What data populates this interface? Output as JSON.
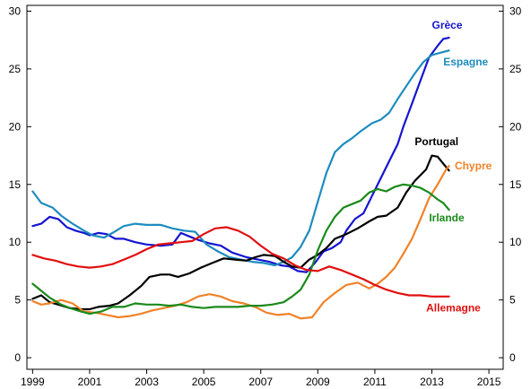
{
  "chart_data": {
    "type": "line",
    "grid": false,
    "xlim": [
      1998.8,
      2015.5
    ],
    "ylim": [
      -1,
      30.5
    ],
    "x_ticks": [
      "1999",
      "2001",
      "2003",
      "2005",
      "2007",
      "2009",
      "2011",
      "2013",
      "2015"
    ],
    "y_ticks_left": [
      "0",
      "5",
      "10",
      "15",
      "20",
      "25",
      "30"
    ],
    "y_ticks_right": [
      "0",
      "5",
      "10",
      "15",
      "20",
      "25",
      "30"
    ],
    "series": [
      {
        "name": "Grèce",
        "color": "#1414d2",
        "label_at": [
          2013.0,
          28.5
        ],
        "points": [
          [
            1999.0,
            11.4
          ],
          [
            1999.3,
            11.6
          ],
          [
            1999.6,
            12.2
          ],
          [
            1999.9,
            12.0
          ],
          [
            2000.2,
            11.3
          ],
          [
            2000.5,
            11.0
          ],
          [
            2000.8,
            10.8
          ],
          [
            2001.0,
            10.6
          ],
          [
            2001.3,
            10.8
          ],
          [
            2001.6,
            10.7
          ],
          [
            2001.9,
            10.3
          ],
          [
            2002.2,
            10.3
          ],
          [
            2002.6,
            10.0
          ],
          [
            2003.0,
            9.8
          ],
          [
            2003.5,
            9.7
          ],
          [
            2003.9,
            9.8
          ],
          [
            2004.2,
            10.8
          ],
          [
            2004.5,
            10.5
          ],
          [
            2004.8,
            10.2
          ],
          [
            2005.2,
            9.9
          ],
          [
            2005.6,
            9.7
          ],
          [
            2006.0,
            9.1
          ],
          [
            2006.5,
            8.7
          ],
          [
            2006.9,
            8.5
          ],
          [
            2007.3,
            8.3
          ],
          [
            2007.7,
            8.0
          ],
          [
            2008.0,
            7.9
          ],
          [
            2008.3,
            7.5
          ],
          [
            2008.6,
            7.4
          ],
          [
            2008.9,
            8.2
          ],
          [
            2009.2,
            9.2
          ],
          [
            2009.5,
            9.5
          ],
          [
            2009.8,
            10.0
          ],
          [
            2010.0,
            11.0
          ],
          [
            2010.3,
            12.0
          ],
          [
            2010.6,
            12.5
          ],
          [
            2010.9,
            14.0
          ],
          [
            2011.2,
            15.5
          ],
          [
            2011.5,
            17.0
          ],
          [
            2011.8,
            18.5
          ],
          [
            2012.0,
            20.0
          ],
          [
            2012.3,
            22.0
          ],
          [
            2012.6,
            24.0
          ],
          [
            2012.9,
            26.0
          ],
          [
            2013.2,
            27.0
          ],
          [
            2013.4,
            27.6
          ],
          [
            2013.6,
            27.7
          ]
        ]
      },
      {
        "name": "Espagne",
        "color": "#1e8cbe",
        "label_at": [
          2013.4,
          25.3
        ],
        "points": [
          [
            1999.0,
            14.4
          ],
          [
            1999.3,
            13.4
          ],
          [
            1999.7,
            13.0
          ],
          [
            2000.0,
            12.3
          ],
          [
            2000.4,
            11.6
          ],
          [
            2000.8,
            11.0
          ],
          [
            2001.1,
            10.6
          ],
          [
            2001.5,
            10.4
          ],
          [
            2001.8,
            10.8
          ],
          [
            2002.2,
            11.4
          ],
          [
            2002.6,
            11.6
          ],
          [
            2003.0,
            11.5
          ],
          [
            2003.5,
            11.5
          ],
          [
            2003.9,
            11.2
          ],
          [
            2004.3,
            11.0
          ],
          [
            2004.7,
            10.9
          ],
          [
            2005.1,
            9.8
          ],
          [
            2005.5,
            9.2
          ],
          [
            2005.9,
            8.7
          ],
          [
            2006.3,
            8.5
          ],
          [
            2006.7,
            8.3
          ],
          [
            2007.1,
            8.2
          ],
          [
            2007.5,
            8.0
          ],
          [
            2007.8,
            8.3
          ],
          [
            2008.1,
            8.7
          ],
          [
            2008.4,
            9.6
          ],
          [
            2008.7,
            11.0
          ],
          [
            2009.0,
            13.5
          ],
          [
            2009.3,
            16.0
          ],
          [
            2009.6,
            17.8
          ],
          [
            2009.9,
            18.5
          ],
          [
            2010.2,
            19.0
          ],
          [
            2010.5,
            19.6
          ],
          [
            2010.9,
            20.3
          ],
          [
            2011.2,
            20.6
          ],
          [
            2011.5,
            21.2
          ],
          [
            2011.8,
            22.4
          ],
          [
            2012.1,
            23.5
          ],
          [
            2012.4,
            24.6
          ],
          [
            2012.7,
            25.6
          ],
          [
            2013.0,
            26.2
          ],
          [
            2013.3,
            26.4
          ],
          [
            2013.6,
            26.6
          ]
        ]
      },
      {
        "name": "Portugal",
        "color": "#000000",
        "label_at": [
          2012.4,
          18.4
        ],
        "points": [
          [
            1999.0,
            5.1
          ],
          [
            1999.3,
            5.4
          ],
          [
            1999.6,
            4.8
          ],
          [
            1999.9,
            4.6
          ],
          [
            2000.3,
            4.3
          ],
          [
            2000.7,
            4.2
          ],
          [
            2001.0,
            4.2
          ],
          [
            2001.3,
            4.4
          ],
          [
            2001.7,
            4.5
          ],
          [
            2002.0,
            4.7
          ],
          [
            2002.4,
            5.4
          ],
          [
            2002.8,
            6.2
          ],
          [
            2003.1,
            7.0
          ],
          [
            2003.5,
            7.2
          ],
          [
            2003.8,
            7.2
          ],
          [
            2004.1,
            7.0
          ],
          [
            2004.5,
            7.3
          ],
          [
            2004.9,
            7.8
          ],
          [
            2005.3,
            8.2
          ],
          [
            2005.7,
            8.6
          ],
          [
            2006.1,
            8.5
          ],
          [
            2006.5,
            8.4
          ],
          [
            2006.8,
            8.7
          ],
          [
            2007.1,
            8.9
          ],
          [
            2007.5,
            8.8
          ],
          [
            2007.8,
            8.3
          ],
          [
            2008.1,
            7.9
          ],
          [
            2008.4,
            7.8
          ],
          [
            2008.7,
            8.5
          ],
          [
            2009.0,
            8.9
          ],
          [
            2009.3,
            9.5
          ],
          [
            2009.6,
            10.3
          ],
          [
            2010.0,
            10.7
          ],
          [
            2010.4,
            11.2
          ],
          [
            2010.8,
            11.8
          ],
          [
            2011.1,
            12.2
          ],
          [
            2011.4,
            12.3
          ],
          [
            2011.8,
            13.0
          ],
          [
            2012.1,
            14.3
          ],
          [
            2012.4,
            15.3
          ],
          [
            2012.8,
            16.3
          ],
          [
            2013.0,
            17.5
          ],
          [
            2013.2,
            17.4
          ],
          [
            2013.4,
            16.8
          ],
          [
            2013.6,
            16.2
          ]
        ]
      },
      {
        "name": "Chypre",
        "color": "#f08228",
        "label_at": [
          2013.8,
          16.3
        ],
        "points": [
          [
            1999.0,
            4.9
          ],
          [
            1999.3,
            4.6
          ],
          [
            1999.6,
            4.7
          ],
          [
            2000.0,
            5.0
          ],
          [
            2000.4,
            4.7
          ],
          [
            2000.8,
            4.0
          ],
          [
            2001.2,
            3.9
          ],
          [
            2001.6,
            3.7
          ],
          [
            2002.0,
            3.5
          ],
          [
            2002.4,
            3.6
          ],
          [
            2002.8,
            3.8
          ],
          [
            2003.2,
            4.1
          ],
          [
            2003.6,
            4.3
          ],
          [
            2004.0,
            4.5
          ],
          [
            2004.4,
            4.8
          ],
          [
            2004.8,
            5.3
          ],
          [
            2005.2,
            5.5
          ],
          [
            2005.6,
            5.3
          ],
          [
            2006.0,
            4.9
          ],
          [
            2006.4,
            4.7
          ],
          [
            2006.8,
            4.4
          ],
          [
            2007.2,
            3.9
          ],
          [
            2007.6,
            3.7
          ],
          [
            2008.0,
            3.8
          ],
          [
            2008.4,
            3.4
          ],
          [
            2008.8,
            3.5
          ],
          [
            2009.2,
            4.8
          ],
          [
            2009.6,
            5.6
          ],
          [
            2010.0,
            6.3
          ],
          [
            2010.4,
            6.5
          ],
          [
            2010.8,
            6.0
          ],
          [
            2011.1,
            6.4
          ],
          [
            2011.4,
            7.0
          ],
          [
            2011.7,
            7.8
          ],
          [
            2012.0,
            9.0
          ],
          [
            2012.3,
            10.3
          ],
          [
            2012.6,
            12.0
          ],
          [
            2012.9,
            13.8
          ],
          [
            2013.2,
            15.0
          ],
          [
            2013.5,
            16.3
          ],
          [
            2013.6,
            16.6
          ]
        ]
      },
      {
        "name": "Irlande",
        "color": "#1a8a1a",
        "label_at": [
          2012.9,
          11.8
        ],
        "points": [
          [
            1999.0,
            6.4
          ],
          [
            1999.3,
            5.8
          ],
          [
            1999.6,
            5.2
          ],
          [
            2000.0,
            4.6
          ],
          [
            2000.3,
            4.3
          ],
          [
            2000.7,
            4.0
          ],
          [
            2001.0,
            3.8
          ],
          [
            2001.4,
            4.0
          ],
          [
            2001.8,
            4.4
          ],
          [
            2002.2,
            4.4
          ],
          [
            2002.6,
            4.7
          ],
          [
            2003.0,
            4.6
          ],
          [
            2003.4,
            4.6
          ],
          [
            2003.8,
            4.5
          ],
          [
            2004.2,
            4.6
          ],
          [
            2004.6,
            4.4
          ],
          [
            2005.0,
            4.3
          ],
          [
            2005.4,
            4.4
          ],
          [
            2005.8,
            4.4
          ],
          [
            2006.2,
            4.4
          ],
          [
            2006.6,
            4.5
          ],
          [
            2007.0,
            4.5
          ],
          [
            2007.4,
            4.6
          ],
          [
            2007.8,
            4.8
          ],
          [
            2008.1,
            5.3
          ],
          [
            2008.4,
            5.9
          ],
          [
            2008.7,
            7.2
          ],
          [
            2009.0,
            9.3
          ],
          [
            2009.3,
            11.0
          ],
          [
            2009.6,
            12.2
          ],
          [
            2009.9,
            13.0
          ],
          [
            2010.2,
            13.3
          ],
          [
            2010.5,
            13.6
          ],
          [
            2010.8,
            14.3
          ],
          [
            2011.1,
            14.6
          ],
          [
            2011.4,
            14.4
          ],
          [
            2011.7,
            14.8
          ],
          [
            2012.0,
            15.0
          ],
          [
            2012.3,
            14.9
          ],
          [
            2012.6,
            14.7
          ],
          [
            2012.9,
            14.3
          ],
          [
            2013.2,
            13.7
          ],
          [
            2013.4,
            13.4
          ],
          [
            2013.6,
            12.8
          ]
        ]
      },
      {
        "name": "Allemagne",
        "color": "#e10f0f",
        "label_at": [
          2012.8,
          4.0
        ],
        "points": [
          [
            1999.0,
            8.9
          ],
          [
            1999.4,
            8.6
          ],
          [
            1999.8,
            8.4
          ],
          [
            2000.2,
            8.1
          ],
          [
            2000.6,
            7.9
          ],
          [
            2001.0,
            7.8
          ],
          [
            2001.4,
            7.9
          ],
          [
            2001.8,
            8.1
          ],
          [
            2002.2,
            8.5
          ],
          [
            2002.6,
            8.9
          ],
          [
            2003.0,
            9.4
          ],
          [
            2003.4,
            9.8
          ],
          [
            2003.8,
            9.9
          ],
          [
            2004.2,
            10.0
          ],
          [
            2004.6,
            10.1
          ],
          [
            2005.0,
            10.7
          ],
          [
            2005.4,
            11.2
          ],
          [
            2005.8,
            11.3
          ],
          [
            2006.2,
            11.0
          ],
          [
            2006.6,
            10.5
          ],
          [
            2007.0,
            9.7
          ],
          [
            2007.4,
            9.0
          ],
          [
            2007.8,
            8.6
          ],
          [
            2008.2,
            8.0
          ],
          [
            2008.6,
            7.6
          ],
          [
            2009.0,
            7.5
          ],
          [
            2009.4,
            7.9
          ],
          [
            2009.8,
            7.6
          ],
          [
            2010.2,
            7.2
          ],
          [
            2010.6,
            6.8
          ],
          [
            2011.0,
            6.3
          ],
          [
            2011.4,
            5.9
          ],
          [
            2011.8,
            5.6
          ],
          [
            2012.2,
            5.4
          ],
          [
            2012.6,
            5.4
          ],
          [
            2013.0,
            5.3
          ],
          [
            2013.3,
            5.3
          ],
          [
            2013.6,
            5.3
          ]
        ]
      }
    ]
  }
}
